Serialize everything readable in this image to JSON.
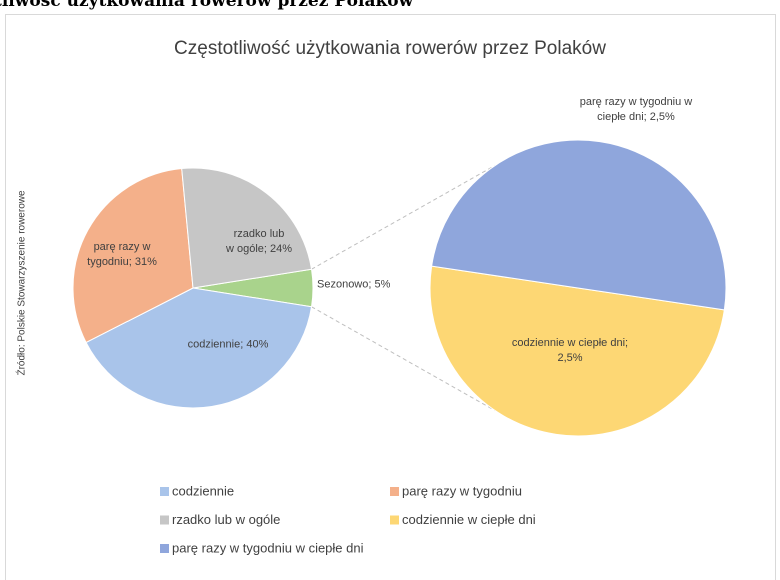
{
  "page_heading": "tliwość użytkowania rowerów przez Polaków",
  "chart_data": {
    "type": "pie_of_pie",
    "title": "Częstotliwość użytkowania rowerów przez Polaków",
    "source": "Źródło: Polskie Stowarzyszenie rowerowe",
    "legend": "bottom",
    "main": {
      "categories": [
        "codziennie",
        "parę razy w tygodniu",
        "rzadko lub w ogóle"
      ],
      "values": [
        40,
        31,
        24
      ],
      "value_labels": [
        "codziennie; 40%",
        "parę razy w\ntygodniu; 31%",
        "rzadko lub\nw ogóle; 24%"
      ],
      "colors": [
        "#a9c4ea",
        "#f4b08a",
        "#c6c6c6"
      ]
    },
    "aggregate": {
      "value": 5,
      "value_label": "Sezonowo; 5%",
      "color": "#a9d38c"
    },
    "secondary": {
      "categories": [
        "codziennie w ciepłe dni",
        "parę razy w tygodniu w ciepłe dni"
      ],
      "values": [
        2.5,
        2.5
      ],
      "value_labels": [
        "codziennie w ciepłe dni;\n2,5%",
        "parę razy w tygodniu w\nciepłe dni; 2,5%"
      ],
      "colors": [
        "#fdd774",
        "#8fa6dc"
      ]
    }
  }
}
